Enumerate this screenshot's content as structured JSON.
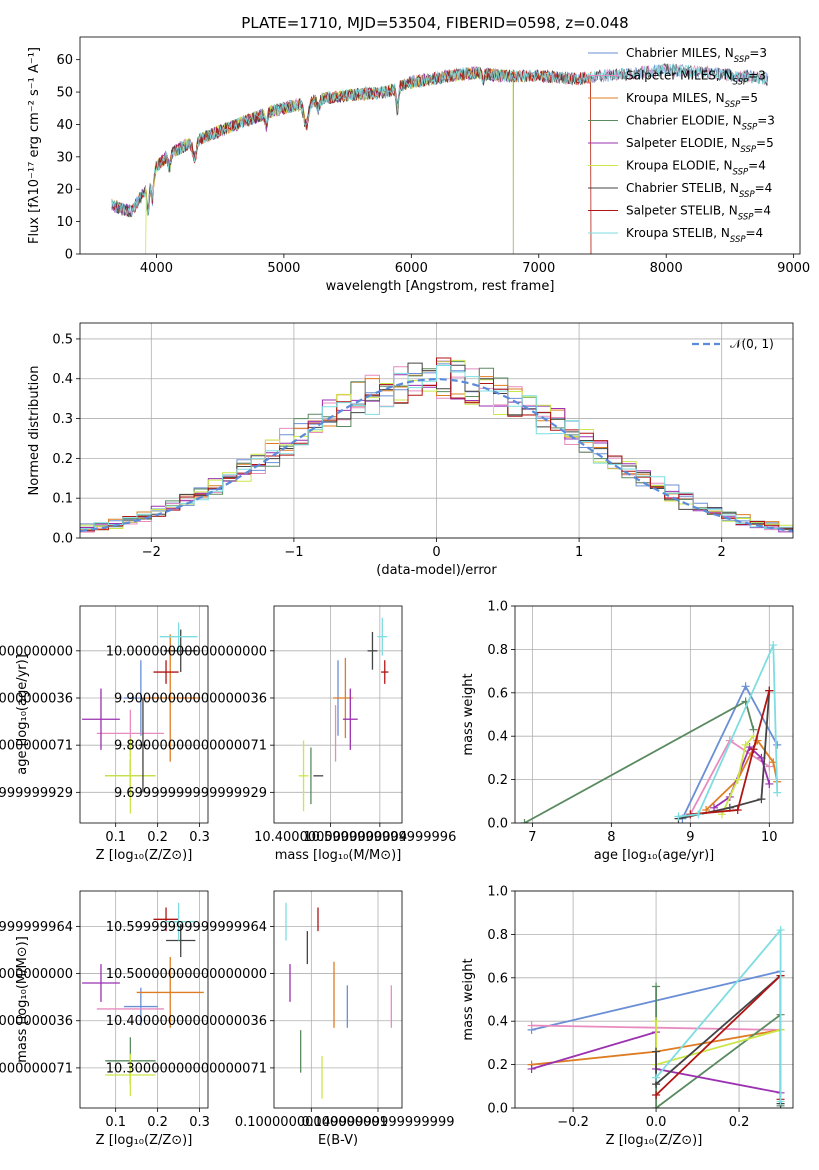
{
  "title": "PLATE=1710, MJD=53504, FIBERID=0598, z=0.048",
  "colors": {
    "Chabrier MILES": "#6a8fd6",
    "Salpeter MILES": "#e88cc0",
    "Kroupa MILES": "#de7c22",
    "Chabrier ELODIE": "#5a8a60",
    "Salpeter ELODIE": "#9b30b0",
    "Kroupa ELODIE": "#cce64a",
    "Chabrier STELIB": "#444444",
    "Salpeter STELIB": "#b01515",
    "Kroupa STELIB": "#7edde0"
  },
  "chart_data": [
    {
      "type": "line",
      "id": "spectrum",
      "title": "PLATE=1710, MJD=53504, FIBERID=0598, z=0.048",
      "xlabel": "wavelength [Angstrom, rest frame]",
      "ylabel": "Flux [fλ10⁻¹⁷ erg cm⁻² s⁻¹ A⁻¹]",
      "xlim": [
        3400,
        9050
      ],
      "ylim": [
        0,
        67
      ],
      "xticks": [
        4000,
        5000,
        6000,
        7000,
        8000,
        9000
      ],
      "yticks": [
        0,
        10,
        20,
        30,
        40,
        50,
        60
      ],
      "legend_loc": "upper right",
      "legend": [
        "Chabrier MILES, N_SSP=3",
        "Salpeter MILES, N_SSP=3",
        "Kroupa MILES, N_SSP=5",
        "Chabrier ELODIE, N_SSP=3",
        "Salpeter ELODIE, N_SSP=5",
        "Kroupa ELODIE, N_SSP=4",
        "Chabrier STELIB, N_SSP=4",
        "Salpeter STELIB, N_SSP=4",
        "Kroupa STELIB, N_SSP=4"
      ],
      "series_ranges": [
        {
          "name": "Chabrier MILES",
          "x_range": [
            3650,
            8800
          ]
        },
        {
          "name": "Salpeter MILES",
          "x_range": [
            3650,
            8800
          ]
        },
        {
          "name": "Kroupa MILES",
          "x_range": [
            3650,
            7410
          ]
        },
        {
          "name": "Chabrier ELODIE",
          "x_range": [
            3650,
            6800
          ]
        },
        {
          "name": "Salpeter ELODIE",
          "x_range": [
            3650,
            6800
          ]
        },
        {
          "name": "Kroupa ELODIE",
          "x_range": [
            3900,
            6800
          ]
        },
        {
          "name": "Chabrier STELIB",
          "x_range": [
            3650,
            8800
          ]
        },
        {
          "name": "Salpeter STELIB",
          "x_range": [
            3650,
            7410
          ]
        },
        {
          "name": "Kroupa STELIB",
          "x_range": [
            3650,
            8800
          ]
        }
      ],
      "continuum": {
        "x": [
          3650,
          3800,
          3950,
          4000,
          4100,
          4300,
          4500,
          4700,
          4900,
          5100,
          5300,
          5500,
          5800,
          6000,
          6300,
          6500,
          6700,
          7000,
          7300,
          7500,
          7800,
          8000,
          8300,
          8600,
          8800
        ],
        "y": [
          15,
          13,
          22,
          27,
          31,
          35,
          38,
          41,
          44,
          46,
          48,
          49,
          50,
          53,
          55,
          56,
          55,
          55,
          54,
          55,
          56,
          57,
          56,
          55,
          54
        ]
      }
    },
    {
      "type": "area",
      "id": "residuals",
      "xlabel": "(data-model)/error",
      "ylabel": "Normed distribution",
      "xlim": [
        -2.5,
        2.5
      ],
      "ylim": [
        0,
        0.54
      ],
      "xticks": [
        -2,
        -1,
        0,
        1,
        2
      ],
      "yticks": [
        0.0,
        0.1,
        0.2,
        0.3,
        0.4,
        0.5
      ],
      "legend_loc": "upper right",
      "legend": [
        "𝒩(0, 1)"
      ],
      "bin_edges_range": [
        -2.5,
        2.5
      ],
      "n_bins": 50
    },
    {
      "type": "scatter",
      "id": "age_vs_Z",
      "xlabel": "Z [log₁₀(Z/Z⊙)]",
      "ylabel": "age  [log₁₀(age/yr)]",
      "xlim": [
        0.015,
        0.32
      ],
      "ylim": [
        9.635,
        10.095
      ],
      "xticks": [
        0.1,
        0.2,
        0.3
      ],
      "yticks": [
        9.7,
        9.8,
        9.9,
        10.0
      ],
      "points": [
        {
          "series": "Chabrier MILES",
          "x": 0.16,
          "xerr": 0.04,
          "y": 9.9,
          "yerr": 0.08
        },
        {
          "series": "Salpeter MILES",
          "x": 0.135,
          "xerr": 0.08,
          "y": 9.825,
          "yerr": 0.05
        },
        {
          "series": "Kroupa MILES",
          "x": 0.23,
          "xerr": 0.07,
          "y": 9.9,
          "yerr": 0.135
        },
        {
          "series": "Chabrier ELODIE",
          "x": 0.135,
          "xerr": 0.06,
          "y": 9.735,
          "yerr": 0.035
        },
        {
          "series": "Salpeter ELODIE",
          "x": 0.065,
          "xerr": 0.045,
          "y": 9.855,
          "yerr": 0.065
        },
        {
          "series": "Kroupa ELODIE",
          "x": 0.135,
          "xerr": 0.06,
          "y": 9.735,
          "yerr": 0.08
        },
        {
          "series": "Chabrier STELIB",
          "x": 0.165,
          "xerr": 0.01,
          "y": 9.8,
          "yerr": 0.1
        },
        {
          "series": "Chabrier STELIB",
          "x": 0.255,
          "xerr": 0.04,
          "y": 10.0,
          "yerr": 0.045
        },
        {
          "series": "Salpeter STELIB",
          "x": 0.22,
          "xerr": 0.03,
          "y": 9.955,
          "yerr": 0.025
        },
        {
          "series": "Kroupa STELIB",
          "x": 0.25,
          "xerr": 0.045,
          "y": 10.03,
          "yerr": 0.03
        }
      ]
    },
    {
      "type": "scatter",
      "id": "age_vs_mass",
      "xlabel": "mass [log₁₀(M/M⊙)]",
      "ylabel": "",
      "xlim": [
        10.17,
        10.69
      ],
      "ylim": [
        9.635,
        10.095
      ],
      "xticks": [
        10.4,
        10.6
      ],
      "yticks": [
        9.7,
        9.8,
        9.9,
        10.0
      ],
      "points": [
        {
          "series": "Chabrier MILES",
          "x": 10.43,
          "xerr": 0.0,
          "y": 9.9,
          "yerr": 0.08
        },
        {
          "series": "Salpeter MILES",
          "x": 10.42,
          "xerr": 0.0,
          "y": 9.825,
          "yerr": 0.06
        },
        {
          "series": "Kroupa MILES",
          "x": 10.46,
          "xerr": 0.0,
          "y": 9.9,
          "yerr": 0.085
        },
        {
          "series": "Kroupa MILES",
          "x": 10.45,
          "xerr": 0.04,
          "y": 9.9,
          "yerr": 0.0
        },
        {
          "series": "Chabrier ELODIE",
          "x": 10.32,
          "xerr": 0.0,
          "y": 9.735,
          "yerr": 0.06
        },
        {
          "series": "Salpeter ELODIE",
          "x": 10.48,
          "xerr": 0.03,
          "y": 9.855,
          "yerr": 0.065
        },
        {
          "series": "Kroupa ELODIE",
          "x": 10.29,
          "xerr": 0.02,
          "y": 9.735,
          "yerr": 0.075
        },
        {
          "series": "Chabrier STELIB",
          "x": 10.57,
          "xerr": 0.02,
          "y": 10.0,
          "yerr": 0.04
        },
        {
          "series": "Chabrier STELIB",
          "x": 10.35,
          "xerr": 0.02,
          "y": 9.735,
          "yerr": 0.0
        },
        {
          "series": "Salpeter STELIB",
          "x": 10.62,
          "xerr": 0.015,
          "y": 9.955,
          "yerr": 0.025
        },
        {
          "series": "Kroupa STELIB",
          "x": 10.61,
          "xerr": 0.02,
          "y": 10.03,
          "yerr": 0.04
        }
      ]
    },
    {
      "type": "line",
      "id": "massweight_vs_age",
      "xlabel": "age  [log₁₀(age/yr)]",
      "ylabel": "mass weight",
      "xlim": [
        6.78,
        10.3
      ],
      "ylim": [
        0,
        1.0
      ],
      "xticks": [
        7,
        8,
        9,
        10
      ],
      "yticks": [
        0.0,
        0.2,
        0.4,
        0.6,
        0.8,
        1.0
      ],
      "series": [
        {
          "name": "Chabrier MILES",
          "x": [
            8.9,
            9.7,
            10.1
          ],
          "y": [
            0.02,
            0.63,
            0.36
          ]
        },
        {
          "name": "Salpeter MILES",
          "x": [
            9.0,
            9.5,
            10.0
          ],
          "y": [
            0.04,
            0.38,
            0.26
          ]
        },
        {
          "name": "Kroupa MILES",
          "x": [
            9.2,
            9.6,
            9.85,
            10.05,
            10.1
          ],
          "y": [
            0.06,
            0.2,
            0.38,
            0.28,
            0.19
          ]
        },
        {
          "name": "Chabrier ELODIE",
          "x": [
            6.9,
            9.7,
            9.8
          ],
          "y": [
            0.0,
            0.56,
            0.43
          ]
        },
        {
          "name": "Salpeter ELODIE",
          "x": [
            9.3,
            9.5,
            9.75,
            9.9,
            10.0
          ],
          "y": [
            0.07,
            0.12,
            0.35,
            0.3,
            0.18
          ]
        },
        {
          "name": "Kroupa ELODIE",
          "x": [
            9.4,
            9.6,
            9.7,
            9.8
          ],
          "y": [
            0.04,
            0.2,
            0.36,
            0.4
          ]
        },
        {
          "name": "Chabrier STELIB",
          "x": [
            8.85,
            9.5,
            9.9,
            10.0
          ],
          "y": [
            0.02,
            0.07,
            0.11,
            0.61
          ]
        },
        {
          "name": "Salpeter STELIB",
          "x": [
            9.0,
            9.6,
            9.8,
            10.0
          ],
          "y": [
            0.04,
            0.06,
            0.34,
            0.61
          ]
        },
        {
          "name": "Kroupa STELIB",
          "x": [
            8.85,
            9.1,
            10.05,
            10.1
          ],
          "y": [
            0.03,
            0.04,
            0.82,
            0.14
          ]
        }
      ]
    },
    {
      "type": "scatter",
      "id": "mass_vs_Z",
      "xlabel": "Z [log₁₀(Z/Z⊙)]",
      "ylabel": "mass [log₁₀(M/M⊙)]",
      "xlim": [
        0.015,
        0.32
      ],
      "ylim": [
        10.215,
        10.675
      ],
      "xticks": [
        0.1,
        0.2,
        0.3
      ],
      "yticks": [
        10.3,
        10.4,
        10.5,
        10.6
      ],
      "points": [
        {
          "series": "Chabrier MILES",
          "x": 0.16,
          "xerr": 0.04,
          "y": 10.43,
          "yerr": 0.04
        },
        {
          "series": "Salpeter MILES",
          "x": 0.135,
          "xerr": 0.08,
          "y": 10.425,
          "yerr": 0.0
        },
        {
          "series": "Kroupa MILES",
          "x": 0.23,
          "xerr": 0.08,
          "y": 10.46,
          "yerr": 0.075
        },
        {
          "series": "Chabrier ELODIE",
          "x": 0.135,
          "xerr": 0.06,
          "y": 10.315,
          "yerr": 0.05
        },
        {
          "series": "Salpeter ELODIE",
          "x": 0.065,
          "xerr": 0.045,
          "y": 10.48,
          "yerr": 0.04
        },
        {
          "series": "Kroupa ELODIE",
          "x": 0.135,
          "xerr": 0.06,
          "y": 10.285,
          "yerr": 0.045
        },
        {
          "series": "Chabrier STELIB",
          "x": 0.255,
          "xerr": 0.035,
          "y": 10.57,
          "yerr": 0.035
        },
        {
          "series": "Salpeter STELIB",
          "x": 0.22,
          "xerr": 0.03,
          "y": 10.615,
          "yerr": 0.025
        },
        {
          "series": "Kroupa STELIB",
          "x": 0.25,
          "xerr": 0.04,
          "y": 10.61,
          "yerr": 0.04
        }
      ]
    },
    {
      "type": "scatter",
      "id": "mass_vs_EBV",
      "xlabel": "E(B-V)",
      "ylabel": "",
      "xlim": [
        0.072,
        0.168
      ],
      "ylim": [
        10.215,
        10.675
      ],
      "xticks": [
        0.1,
        0.15
      ],
      "yticks": [
        10.3,
        10.4,
        10.5,
        10.6
      ],
      "points": [
        {
          "series": "Kroupa STELIB",
          "x": 0.081,
          "xerr": 0.0,
          "y": 10.61,
          "yerr": 0.04
        },
        {
          "series": "Salpeter ELODIE",
          "x": 0.084,
          "xerr": 0.0,
          "y": 10.48,
          "yerr": 0.04
        },
        {
          "series": "Chabrier ELODIE",
          "x": 0.092,
          "xerr": 0.0,
          "y": 10.335,
          "yerr": 0.045
        },
        {
          "series": "Chabrier STELIB",
          "x": 0.097,
          "xerr": 0.0,
          "y": 10.555,
          "yerr": 0.035
        },
        {
          "series": "Salpeter STELIB",
          "x": 0.105,
          "xerr": 0.0,
          "y": 10.615,
          "yerr": 0.025
        },
        {
          "series": "Kroupa ELODIE",
          "x": 0.108,
          "xerr": 0.0,
          "y": 10.28,
          "yerr": 0.045
        },
        {
          "series": "Kroupa MILES",
          "x": 0.117,
          "xerr": 0.0,
          "y": 10.455,
          "yerr": 0.07
        },
        {
          "series": "Chabrier MILES",
          "x": 0.127,
          "xerr": 0.0,
          "y": 10.43,
          "yerr": 0.045
        },
        {
          "series": "Salpeter MILES",
          "x": 0.16,
          "xerr": 0.0,
          "y": 10.43,
          "yerr": 0.045
        }
      ]
    },
    {
      "type": "line",
      "id": "massweight_vs_Z",
      "xlabel": "Z [log₁₀(Z/Z⊙)]",
      "ylabel": "mass weight",
      "xlim": [
        -0.34,
        0.33
      ],
      "ylim": [
        0,
        1.0
      ],
      "xticks": [
        -0.2,
        0.0,
        0.2
      ],
      "yticks": [
        0.0,
        0.2,
        0.4,
        0.6,
        0.8,
        1.0
      ],
      "series": [
        {
          "name": "Chabrier MILES",
          "x": [
            -0.3,
            0.3
          ],
          "y": [
            0.36,
            0.63
          ]
        },
        {
          "name": "Salpeter MILES",
          "x": [
            -0.3,
            0.3
          ],
          "y": [
            0.38,
            0.36
          ]
        },
        {
          "name": "Kroupa MILES",
          "x": [
            -0.3,
            0.0,
            0.3
          ],
          "y": [
            0.2,
            0.26,
            0.36
          ]
        },
        {
          "name": "Chabrier ELODIE",
          "x": [
            0.0,
            0.0,
            0.3,
            0.3
          ],
          "y": [
            0.56,
            0.0,
            0.43,
            0.01
          ]
        },
        {
          "name": "Salpeter ELODIE",
          "x": [
            -0.3,
            0.0,
            0.0,
            0.3
          ],
          "y": [
            0.18,
            0.35,
            0.18,
            0.07
          ]
        },
        {
          "name": "Kroupa ELODIE",
          "x": [
            0.0,
            0.0,
            0.3
          ],
          "y": [
            0.4,
            0.2,
            0.36
          ]
        },
        {
          "name": "Chabrier STELIB",
          "x": [
            0.0,
            0.0,
            0.3,
            0.3
          ],
          "y": [
            0.26,
            0.11,
            0.61,
            0.02
          ]
        },
        {
          "name": "Salpeter STELIB",
          "x": [
            0.0,
            0.3,
            0.3
          ],
          "y": [
            0.06,
            0.61,
            0.04
          ]
        },
        {
          "name": "Kroupa STELIB",
          "x": [
            0.0,
            0.3,
            0.3
          ],
          "y": [
            0.14,
            0.82,
            0.03
          ]
        }
      ]
    }
  ]
}
